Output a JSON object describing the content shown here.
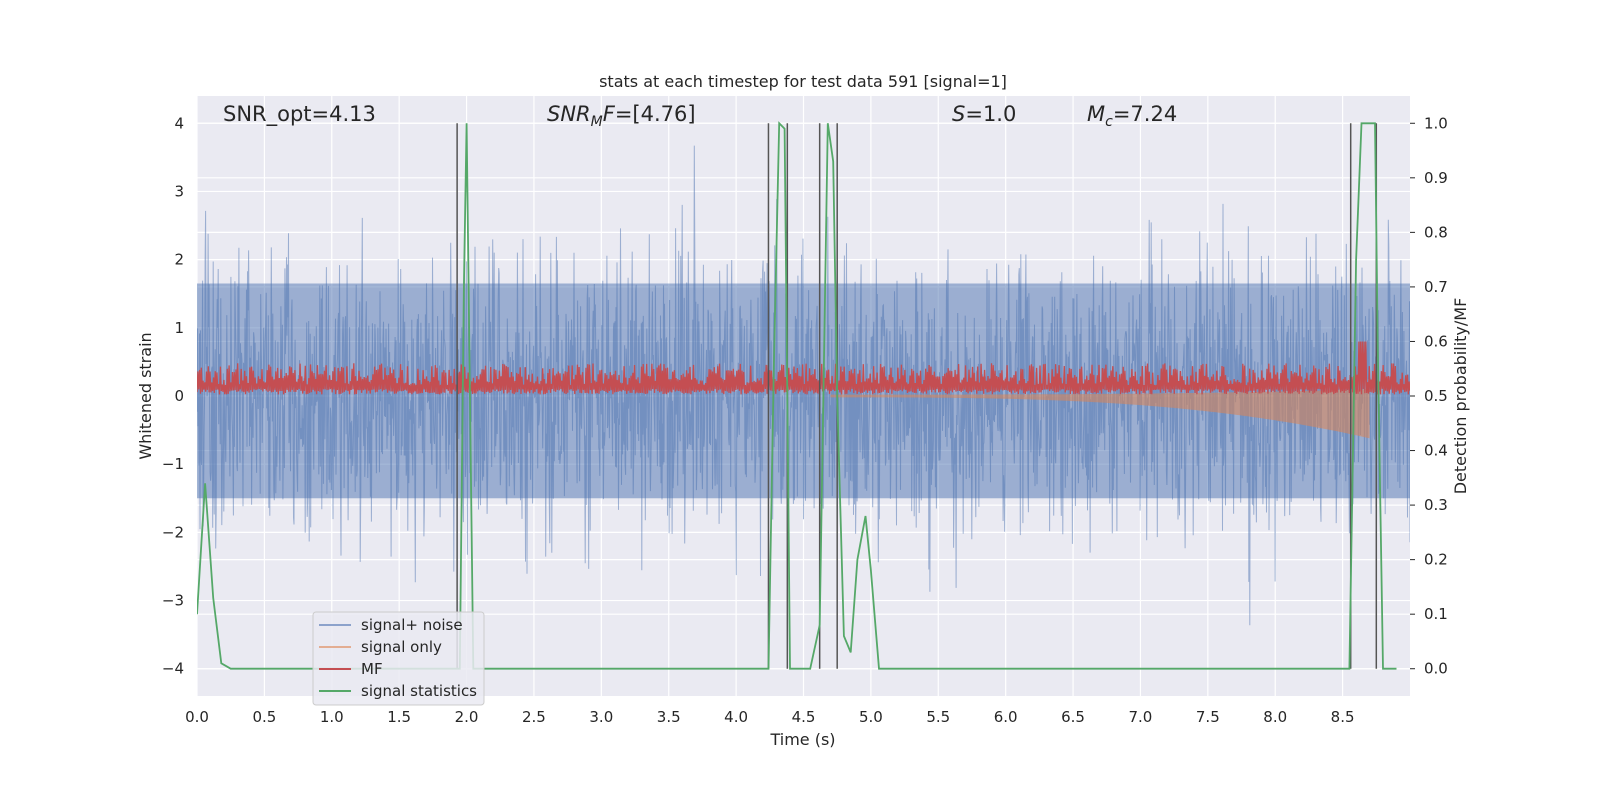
{
  "chart_data": {
    "type": "line",
    "title": "stats at each timestep for test data 591 [signal=1]",
    "xlabel": "Time (s)",
    "ylabel": "Whitened strain",
    "ylabel_right": "Detection probability/MF",
    "xlim": [
      0.0,
      9.0
    ],
    "ylim_left": [
      -4.4,
      4.4
    ],
    "ylim_right": [
      -0.05,
      1.05
    ],
    "x_ticks": [
      "0.0",
      "0.5",
      "1.0",
      "1.5",
      "2.0",
      "2.5",
      "3.0",
      "3.5",
      "4.0",
      "4.5",
      "5.0",
      "5.5",
      "6.0",
      "6.5",
      "7.0",
      "7.5",
      "8.0",
      "8.5"
    ],
    "x_tick_values": [
      0.0,
      0.5,
      1.0,
      1.5,
      2.0,
      2.5,
      3.0,
      3.5,
      4.0,
      4.5,
      5.0,
      5.5,
      6.0,
      6.5,
      7.0,
      7.5,
      8.0,
      8.5
    ],
    "y_left_ticks": [
      "4",
      "3",
      "2",
      "1",
      "0",
      "−1",
      "−2",
      "−3",
      "−4"
    ],
    "y_left_tick_values": [
      4,
      3,
      2,
      1,
      0,
      -1,
      -2,
      -3,
      -4
    ],
    "y_right_ticks": [
      "1.0",
      "0.9",
      "0.8",
      "0.7",
      "0.6",
      "0.5",
      "0.4",
      "0.3",
      "0.2",
      "0.1",
      "0.0"
    ],
    "y_right_tick_values": [
      1.0,
      0.9,
      0.8,
      0.7,
      0.6,
      0.5,
      0.4,
      0.3,
      0.2,
      0.1,
      0.0
    ],
    "grid": true,
    "legend_position": "lower-left",
    "annotations": {
      "snr_opt": "SNR_opt=4.13",
      "snr_mf_main": "SNR",
      "snr_mf_sub": "M",
      "snr_mf_rest": "F=[4.76]",
      "s_main": "S",
      "s_rest": "=1.0",
      "mc_main": "M",
      "mc_sub": "c",
      "mc_rest": "=7.24"
    },
    "series": [
      {
        "name": "signal+ noise",
        "color": "#4c72b0",
        "axis": "left",
        "kind": "noise",
        "spread_std": 1.0,
        "peak_max": 4.0,
        "peak_min": -3.7
      },
      {
        "name": "signal only",
        "color": "#dd8452",
        "axis": "left",
        "kind": "chirp",
        "start": 4.7,
        "merger": 8.7,
        "peak_amplitude": 0.6
      },
      {
        "name": "MF",
        "color": "#c44e52",
        "axis": "right",
        "kind": "band",
        "base": 0.5,
        "typical_max": 0.56,
        "peak_max": 0.6
      },
      {
        "name": "signal statistics",
        "color": "#55a868",
        "axis": "right",
        "x": [
          0.0,
          0.06,
          0.12,
          0.18,
          0.25,
          0.3,
          1.9,
          1.95,
          1.98,
          2.0,
          2.05,
          4.24,
          4.28,
          4.32,
          4.36,
          4.38,
          4.4,
          4.5,
          4.55,
          4.62,
          4.68,
          4.72,
          4.75,
          4.8,
          4.85,
          4.9,
          4.96,
          5.0,
          5.06,
          5.1,
          8.55,
          8.6,
          8.64,
          8.7,
          8.74,
          8.76,
          8.8,
          8.9
        ],
        "y": [
          0.1,
          0.34,
          0.13,
          0.01,
          0.0,
          0.0,
          0.0,
          0.0,
          0.7,
          1.0,
          0.0,
          0.0,
          0.55,
          1.0,
          0.99,
          0.5,
          0.0,
          0.0,
          0.0,
          0.08,
          1.0,
          0.93,
          0.5,
          0.06,
          0.03,
          0.2,
          0.28,
          0.18,
          0.0,
          0.0,
          0.0,
          0.75,
          1.0,
          1.0,
          1.0,
          0.6,
          0.0,
          0.0
        ]
      }
    ],
    "vertical_markers": {
      "color": "#555555",
      "x": [
        1.93,
        4.24,
        4.38,
        4.62,
        4.75,
        8.56,
        8.75
      ]
    }
  }
}
